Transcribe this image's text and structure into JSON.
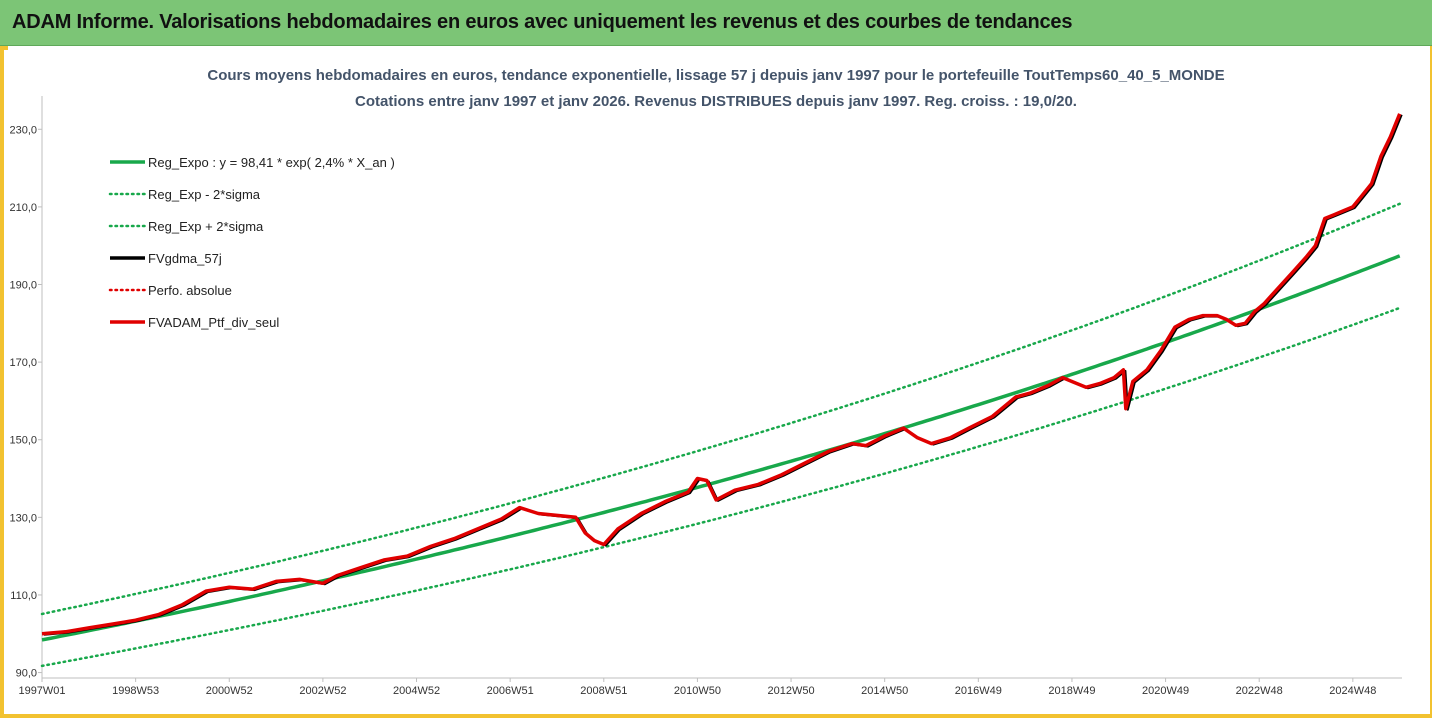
{
  "header": {
    "title": "ADAM Informe. Valorisations hebdomadaires en euros avec uniquement les revenus et des courbes de tendances"
  },
  "chart_data": {
    "type": "line",
    "title_line1": "Cours moyens hebdomadaires  en euros, tendance exponentielle, lissage 57 j depuis janv 1997 pour le portefeuille ToutTemps60_40_5_MONDE",
    "title_line2": "Cotations entre janv 1997 et janv 2026. Revenus DISTRIBUES depuis janv 1997. Reg. croiss. : 19,0/20.",
    "ylim": [
      88.6,
      236
    ],
    "xlim": [
      1997.0,
      2026.05
    ],
    "y_ticks": [
      "90,0",
      "110,0",
      "130,0",
      "150,0",
      "170,0",
      "190,0",
      "210,0",
      "230,0"
    ],
    "y_tick_values": [
      90,
      110,
      130,
      150,
      170,
      190,
      210,
      230
    ],
    "x_ticks": [
      "1997W01",
      "1998W53",
      "2000W52",
      "2002W52",
      "2004W52",
      "2006W51",
      "2008W51",
      "2010W50",
      "2012W50",
      "2014W50",
      "2016W49",
      "2018W49",
      "2020W49",
      "2022W48",
      "2024W48"
    ],
    "x_tick_values": [
      1997.0,
      1999.0,
      2001.0,
      2003.0,
      2005.0,
      2007.0,
      2009.0,
      2011.0,
      2013.0,
      2015.0,
      2017.0,
      2019.0,
      2021.0,
      2023.0,
      2025.0
    ],
    "grid": false,
    "legend_position": "top-left",
    "regression": {
      "a": 98.41,
      "rate": 0.024,
      "sigma_factor": 0.068
    },
    "series": [
      {
        "name": "Reg_Expo : y = 98,41 * exp( 2,4% *  X_an )",
        "color": "#18a84b",
        "style": "solid"
      },
      {
        "name": "Reg_Exp - 2*sigma",
        "color": "#18a84b",
        "style": "dotted"
      },
      {
        "name": "Reg_Exp + 2*sigma",
        "color": "#18a84b",
        "style": "dotted"
      },
      {
        "name": "FVgdma_57j",
        "color": "#000000",
        "style": "solid"
      },
      {
        "name": "Perfo. absolue",
        "color": "#e00000",
        "style": "dotted"
      },
      {
        "name": "FVADAM_Ptf_div_seul",
        "color": "#e00000",
        "style": "solid",
        "x": [
          1997.0,
          1997.5,
          1998.0,
          1998.5,
          1999.0,
          1999.5,
          2000.0,
          2000.5,
          2001.0,
          2001.5,
          2002.0,
          2002.5,
          2003.0,
          2003.3,
          2003.8,
          2004.3,
          2004.8,
          2005.3,
          2005.8,
          2006.3,
          2006.8,
          2007.2,
          2007.6,
          2008.0,
          2008.4,
          2008.6,
          2008.8,
          2009.0,
          2009.3,
          2009.8,
          2010.3,
          2010.8,
          2011.0,
          2011.2,
          2011.4,
          2011.8,
          2012.3,
          2012.8,
          2013.3,
          2013.8,
          2014.3,
          2014.6,
          2015.0,
          2015.4,
          2015.7,
          2016.0,
          2016.4,
          2016.8,
          2017.3,
          2017.8,
          2018.1,
          2018.5,
          2018.8,
          2019.0,
          2019.3,
          2019.6,
          2019.9,
          2020.1,
          2020.15,
          2020.3,
          2020.6,
          2020.9,
          2021.2,
          2021.5,
          2021.8,
          2022.1,
          2022.3,
          2022.5,
          2022.7,
          2022.9,
          2023.1,
          2023.4,
          2023.7,
          2024.0,
          2024.2,
          2024.4,
          2024.6,
          2024.8,
          2025.0,
          2025.2,
          2025.4,
          2025.6,
          2025.8,
          2026.0
        ],
        "y": [
          100,
          100.5,
          101.5,
          102.5,
          103.5,
          105,
          107.5,
          111,
          112,
          111.5,
          113.5,
          114,
          113,
          115,
          117,
          119,
          120,
          122.5,
          124.5,
          127,
          129.5,
          132.5,
          131,
          130.5,
          130,
          126,
          124,
          123,
          127,
          131,
          134,
          136.5,
          140,
          139.5,
          134.5,
          137,
          138.5,
          141,
          144,
          147,
          149,
          148.5,
          151,
          153,
          150.5,
          149,
          150.5,
          153,
          156,
          161,
          162,
          164,
          166,
          165,
          163.5,
          164.5,
          166,
          168,
          158,
          165,
          168,
          173,
          179,
          181,
          182,
          182,
          181,
          179.5,
          180,
          183,
          185,
          189,
          193,
          197,
          200,
          207,
          208,
          209,
          210,
          213,
          216,
          223,
          228,
          234
        ]
      }
    ]
  }
}
